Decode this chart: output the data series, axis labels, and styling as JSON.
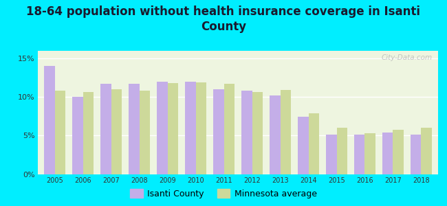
{
  "title": "18-64 population without health insurance coverage in Isanti\nCounty",
  "years": [
    2005,
    2006,
    2007,
    2008,
    2009,
    2010,
    2011,
    2012,
    2013,
    2014,
    2015,
    2016,
    2017,
    2018
  ],
  "isanti_county": [
    14.0,
    10.0,
    11.7,
    11.7,
    12.0,
    12.0,
    11.0,
    10.8,
    10.2,
    7.4,
    5.1,
    5.1,
    5.4,
    5.1
  ],
  "mn_average": [
    10.8,
    10.6,
    11.0,
    10.8,
    11.8,
    11.9,
    11.7,
    10.6,
    10.9,
    7.9,
    6.0,
    5.3,
    5.7,
    6.0
  ],
  "isanti_color": "#c4aee8",
  "mn_color": "#cdd99a",
  "background_outer": "#00eeff",
  "background_inner": "#eef5e0",
  "ylim": [
    0,
    16
  ],
  "yticks": [
    0,
    5,
    10,
    15
  ],
  "ytick_labels": [
    "0%",
    "5%",
    "10%",
    "15%"
  ],
  "title_fontsize": 12,
  "legend_labels": [
    "Isanti County",
    "Minnesota average"
  ],
  "watermark": "City-Data.com"
}
